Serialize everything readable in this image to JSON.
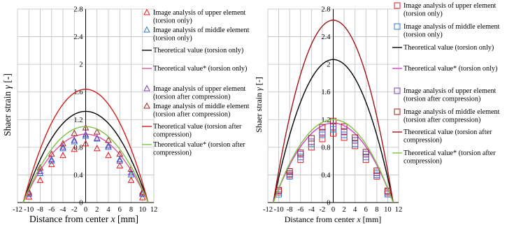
{
  "chart_data": [
    {
      "type": "scatter",
      "panel": "left",
      "xlabel": "Distance from center",
      "xlabel_symbol": "x",
      "xlabel_unit": "[mm]",
      "ylabel": "Shaer strain",
      "ylabel_symbol": "γ",
      "ylabel_unit": "[-]",
      "xlim": [
        -12,
        12
      ],
      "ylim": [
        0,
        2.8
      ],
      "xticks": [
        -12,
        -10,
        -8,
        -6,
        -4,
        -2,
        0,
        2,
        4,
        6,
        8,
        10,
        12
      ],
      "xtick_labels": [
        "-12",
        "-10",
        "-8",
        "-6",
        "-4",
        "-2",
        "0",
        "2",
        "4",
        "6",
        "8",
        "10",
        "12"
      ],
      "yticks": [
        0,
        0.4,
        0.8,
        1.2,
        1.6,
        2.0,
        2.4,
        2.8
      ],
      "ytick_labels": [
        "0",
        "0.4",
        "0.8",
        "1.2",
        "1.6",
        "2",
        "2.4",
        "2.8"
      ],
      "grid": true,
      "legend_placement": "right",
      "series": [
        {
          "name": "Image analysis of upper element (torsion only)",
          "kind": "markers",
          "marker": "triangle",
          "color": "#e41a1c",
          "x": [
            -10,
            -8,
            -6,
            -4,
            -2,
            0,
            2,
            4,
            6,
            8,
            10
          ],
          "y": [
            0.08,
            0.32,
            0.55,
            0.68,
            0.77,
            0.85,
            0.78,
            0.68,
            0.53,
            0.32,
            0.07
          ]
        },
        {
          "name": "Image analysis of middle element (torsion only)",
          "kind": "markers",
          "marker": "triangle",
          "color": "#2b7bd3",
          "x": [
            -10,
            -8,
            -6,
            -4,
            -2,
            0,
            2,
            4,
            6,
            8,
            10
          ],
          "y": [
            0.12,
            0.42,
            0.6,
            0.78,
            0.88,
            0.96,
            0.92,
            0.8,
            0.62,
            0.4,
            0.12
          ]
        },
        {
          "name": "Theoretical value (torsion only)",
          "kind": "line",
          "color": "#000000",
          "peak": 1.32,
          "half_width": 11
        },
        {
          "name": "Theoretical value* (torsion only)",
          "kind": "line",
          "color": "#e0559a",
          "peak": 0.99,
          "half_width": 11
        },
        {
          "name": "Image analysis of upper element (torsion after compression)",
          "kind": "markers",
          "marker": "triangle",
          "color": "#7b3fb5",
          "x": [
            -10,
            -8,
            -6,
            -4,
            -2,
            0,
            2,
            4,
            6,
            8,
            10
          ],
          "y": [
            0.13,
            0.45,
            0.62,
            0.8,
            0.9,
            0.98,
            0.93,
            0.82,
            0.6,
            0.43,
            0.13
          ]
        },
        {
          "name": "Image analysis of middle element (torsion after compression)",
          "kind": "markers",
          "marker": "triangle",
          "color": "#a3201e",
          "x": [
            -10,
            -8,
            -6,
            -4,
            -2,
            0,
            2,
            4,
            6,
            8,
            10
          ],
          "y": [
            0.15,
            0.5,
            0.7,
            0.85,
            1.0,
            1.08,
            1.02,
            0.9,
            0.7,
            0.48,
            0.15
          ]
        },
        {
          "name": "Theoretical value (torsion after compression)",
          "kind": "line",
          "color": "#d01c1c",
          "peak": 1.64,
          "half_width": 11
        },
        {
          "name": "Theoretical value* (torsion after compression)",
          "kind": "line",
          "color": "#7dc242",
          "peak": 1.1,
          "half_width": 11
        }
      ]
    },
    {
      "type": "scatter",
      "panel": "right",
      "xlabel": "Distance from center",
      "xlabel_symbol": "x",
      "xlabel_unit": "[mm]",
      "ylabel": "Shaer strain",
      "ylabel_symbol": "γ",
      "ylabel_unit": "[-]",
      "xlim": [
        -12,
        12
      ],
      "ylim": [
        0,
        2.8
      ],
      "xticks": [
        -12,
        -10,
        -8,
        -6,
        -4,
        -2,
        0,
        2,
        4,
        6,
        8,
        10,
        12
      ],
      "xtick_labels": [
        "-12",
        "-10",
        "-8",
        "-6",
        "-4",
        "-2",
        "0",
        "2",
        "4",
        "6",
        "8",
        "10",
        "12"
      ],
      "yticks": [
        0,
        0.4,
        0.8,
        1.2,
        1.6,
        2.0,
        2.4,
        2.8
      ],
      "ytick_labels": [
        "0",
        "0.4",
        "0.8",
        "1.2",
        "1.6",
        "2",
        "2.4",
        "2.8"
      ],
      "grid": true,
      "legend_placement": "right",
      "series": [
        {
          "name": "Image analysis of upper element (torsion only)",
          "kind": "markers",
          "marker": "square",
          "color": "#e41a1c",
          "x": [
            -10,
            -8,
            -6,
            -4,
            -2,
            0,
            2,
            4,
            6,
            8,
            10
          ],
          "y": [
            0.15,
            0.4,
            0.62,
            0.8,
            0.92,
            1.0,
            0.94,
            0.82,
            0.62,
            0.38,
            0.14
          ]
        },
        {
          "name": "Image analysis of middle element (torsion only)",
          "kind": "markers",
          "marker": "square",
          "color": "#2b7bd3",
          "x": [
            -10,
            -8,
            -6,
            -4,
            -2,
            0,
            2,
            4,
            6,
            8,
            10
          ],
          "y": [
            0.12,
            0.38,
            0.66,
            0.85,
            0.98,
            1.06,
            0.98,
            0.85,
            0.66,
            0.4,
            0.12
          ]
        },
        {
          "name": "Theoretical value (torsion only)",
          "kind": "line",
          "color": "#000000",
          "peak": 2.07,
          "half_width": 11
        },
        {
          "name": "Theoretical value* (torsion only)",
          "kind": "line",
          "color": "#d63fc9",
          "peak": 1.15,
          "half_width": 11
        },
        {
          "name": "Image analysis of upper element (torsion after compression)",
          "kind": "markers",
          "marker": "square",
          "color": "#7b3fb5",
          "x": [
            -10,
            -8,
            -6,
            -4,
            -2,
            0,
            2,
            4,
            6,
            8,
            10
          ],
          "y": [
            0.17,
            0.42,
            0.7,
            0.88,
            1.02,
            1.1,
            1.03,
            0.9,
            0.7,
            0.43,
            0.16
          ]
        },
        {
          "name": "Image analysis of middle element (torsion after compression)",
          "kind": "markers",
          "marker": "square",
          "color": "#a3201e",
          "x": [
            -10,
            -8,
            -6,
            -4,
            -2,
            0,
            2,
            4,
            6,
            8,
            10
          ],
          "y": [
            0.18,
            0.45,
            0.72,
            0.93,
            1.09,
            1.18,
            1.1,
            0.94,
            0.73,
            0.46,
            0.17
          ]
        },
        {
          "name": "Theoretical value (torsion after compression)",
          "kind": "line",
          "color": "#a01515",
          "peak": 2.64,
          "half_width": 11
        },
        {
          "name": "Theoretical value* (torsion after compression)",
          "kind": "line",
          "color": "#7dc242",
          "peak": 1.2,
          "half_width": 11
        }
      ]
    }
  ]
}
